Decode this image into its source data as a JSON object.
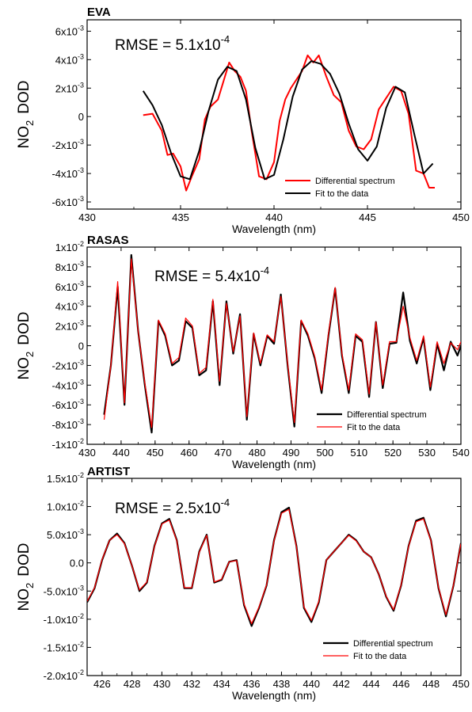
{
  "chart_data": [
    {
      "type": "line",
      "title": "EVA",
      "annotation": "RMSE = 5.1x10",
      "annotation_exp": "-4",
      "xlabel": "Wavelength (nm)",
      "ylabel": {
        "pre": "NO",
        "sub": "2",
        "post": "DOD"
      },
      "xlim": [
        430,
        450
      ],
      "ylim": [
        -0.0065,
        0.0068
      ],
      "xticks": [
        430,
        435,
        440,
        445,
        450
      ],
      "yticks": [
        {
          "v": 0.006,
          "m": "6x10",
          "e": "-3"
        },
        {
          "v": 0.004,
          "m": "4x10",
          "e": "-3"
        },
        {
          "v": 0.002,
          "m": "2x10",
          "e": "-3"
        },
        {
          "v": 0,
          "m": "0",
          "e": ""
        },
        {
          "v": -0.002,
          "m": "-2x10",
          "e": "-3"
        },
        {
          "v": -0.004,
          "m": "-4x10",
          "e": "-3"
        },
        {
          "v": -0.006,
          "m": "-6x10",
          "e": "-3"
        }
      ],
      "series": [
        {
          "name": "Differential spectrum",
          "color": "#ff0000",
          "width": 2,
          "x": [
            433,
            433.5,
            434,
            434.3,
            434.6,
            435,
            435.3,
            435.6,
            436,
            436.3,
            436.6,
            437,
            437.3,
            437.6,
            437.9,
            438.2,
            438.5,
            438.8,
            439.2,
            439.6,
            440,
            440.3,
            440.6,
            440.9,
            441.2,
            441.5,
            441.8,
            442.1,
            442.4,
            442.8,
            443.2,
            443.6,
            444,
            444.4,
            444.8,
            445.2,
            445.6,
            446,
            446.4,
            446.8,
            447.2,
            447.6,
            448,
            448.3,
            448.6
          ],
          "y": [
            0.0001,
            0.0002,
            -0.001,
            -0.0027,
            -0.0026,
            -0.0035,
            -0.0052,
            -0.0042,
            -0.003,
            -0.0002,
            0.0007,
            0.0012,
            0.0025,
            0.0038,
            0.0032,
            0.0028,
            0.0018,
            -0.001,
            -0.0042,
            -0.0044,
            -0.0032,
            -0.0003,
            0.0012,
            0.002,
            0.0026,
            0.0032,
            0.0043,
            0.0038,
            0.0043,
            0.0028,
            0.0015,
            0.001,
            -0.001,
            -0.0021,
            -0.0023,
            -0.0016,
            0.0005,
            0.0013,
            0.0021,
            0.0018,
            0.0002,
            -0.0038,
            -0.004,
            -0.005,
            -0.005
          ]
        },
        {
          "name": "Fit to the data",
          "color": "#000000",
          "width": 2,
          "x": [
            433,
            433.5,
            434,
            434.5,
            435,
            435.5,
            436,
            436.5,
            437,
            437.5,
            438,
            438.5,
            439,
            439.5,
            440,
            440.5,
            441,
            441.5,
            442,
            442.5,
            443,
            443.5,
            444,
            444.5,
            445,
            445.5,
            446,
            446.5,
            447,
            447.5,
            448,
            448.5
          ],
          "y": [
            0.0018,
            0.0008,
            -0.0006,
            -0.0026,
            -0.0042,
            -0.0044,
            -0.0024,
            0.0004,
            0.0026,
            0.0035,
            0.0032,
            0.0012,
            -0.0022,
            -0.0044,
            -0.0041,
            -0.0016,
            0.0014,
            0.0033,
            0.0039,
            0.0037,
            0.003,
            0.0016,
            -0.0005,
            -0.0023,
            -0.0031,
            -0.0021,
            0.0006,
            0.0021,
            0.0017,
            -0.0012,
            -0.004,
            -0.0033
          ]
        }
      ]
    },
    {
      "type": "line",
      "title": "RASAS",
      "annotation": "RMSE = 5.4x10",
      "annotation_exp": "-4",
      "xlabel": "Wavelength (nm)",
      "ylabel": {
        "pre": "NO",
        "sub": "2",
        "post": "DOD"
      },
      "xlim": [
        430,
        540
      ],
      "ylim": [
        -0.01,
        0.01
      ],
      "xticks": [
        430,
        440,
        450,
        460,
        470,
        480,
        490,
        500,
        510,
        520,
        530,
        540
      ],
      "yticks": [
        {
          "v": 0.01,
          "m": "1x10",
          "e": "-2"
        },
        {
          "v": 0.008,
          "m": "8x10",
          "e": "-3"
        },
        {
          "v": 0.006,
          "m": "6x10",
          "e": "-3"
        },
        {
          "v": 0.004,
          "m": "4x10",
          "e": "-3"
        },
        {
          "v": 0.002,
          "m": "2x10",
          "e": "-3"
        },
        {
          "v": 0,
          "m": "0",
          "e": ""
        },
        {
          "v": -0.002,
          "m": "-2x10",
          "e": "-3"
        },
        {
          "v": -0.004,
          "m": "-4x10",
          "e": "-3"
        },
        {
          "v": -0.006,
          "m": "-6x10",
          "e": "-3"
        },
        {
          "v": -0.008,
          "m": "-8x10",
          "e": "-3"
        },
        {
          "v": -0.01,
          "m": "-1x10",
          "e": "-2"
        }
      ],
      "series": [
        {
          "name": "Differential spectrum",
          "color": "#000000",
          "width": 2.2,
          "x": [
            435,
            437,
            439,
            441,
            443,
            445,
            447,
            449,
            451,
            453,
            455,
            457,
            459,
            461,
            463,
            465,
            467,
            469,
            471,
            473,
            475,
            477,
            479,
            481,
            483,
            485,
            487,
            489,
            491,
            493,
            495,
            497,
            499,
            501,
            503,
            505,
            507,
            509,
            511,
            513,
            515,
            517,
            519,
            521,
            523,
            525,
            527,
            529,
            531,
            533,
            535,
            537,
            539,
            540
          ],
          "y": [
            -0.007,
            -0.002,
            0.006,
            -0.006,
            0.0092,
            0.0015,
            -0.004,
            -0.0088,
            0.0025,
            0.001,
            -0.002,
            -0.0015,
            0.0025,
            0.0018,
            -0.003,
            -0.0025,
            0.0045,
            -0.004,
            0.0045,
            -0.0008,
            0.0032,
            -0.0075,
            0.0012,
            -0.002,
            0.001,
            0.0002,
            0.0052,
            -0.002,
            -0.0082,
            0.0025,
            0.001,
            -0.0013,
            -0.0048,
            0.001,
            0.0058,
            -0.001,
            -0.0048,
            0.001,
            0.0004,
            -0.0052,
            0.0024,
            -0.0043,
            0.0002,
            0.0003,
            0.0054,
            0.0005,
            -0.0018,
            0.0008,
            -0.0045,
            0.0002,
            -0.0025,
            0.0004,
            -0.001,
            0.0
          ]
        },
        {
          "name": "Fit to the data",
          "color": "#ff0000",
          "width": 1.2,
          "x": [
            435,
            437,
            439,
            441,
            443,
            445,
            447,
            449,
            451,
            453,
            455,
            457,
            459,
            461,
            463,
            465,
            467,
            469,
            471,
            473,
            475,
            477,
            479,
            481,
            483,
            485,
            487,
            489,
            491,
            493,
            495,
            497,
            499,
            501,
            503,
            505,
            507,
            509,
            511,
            513,
            515,
            517,
            519,
            521,
            523,
            525,
            527,
            529,
            531,
            533,
            535,
            537,
            539,
            540
          ],
          "y": [
            -0.0075,
            -0.002,
            0.0065,
            -0.0058,
            0.0088,
            0.0015,
            -0.0038,
            -0.0083,
            0.0026,
            0.0012,
            -0.0018,
            -0.0012,
            0.0028,
            0.002,
            -0.0028,
            -0.0022,
            0.0047,
            -0.0036,
            0.0043,
            -0.0006,
            0.003,
            -0.0072,
            0.0013,
            -0.0018,
            0.0011,
            0.0004,
            0.005,
            -0.0018,
            -0.0078,
            0.0026,
            0.0012,
            -0.0011,
            -0.0045,
            0.0012,
            0.0059,
            -0.0008,
            -0.0045,
            0.0012,
            0.0006,
            -0.0049,
            0.0024,
            -0.004,
            0.0004,
            0.0004,
            0.004,
            0.0008,
            -0.0015,
            0.001,
            -0.0042,
            0.0004,
            -0.0018,
            0.0003,
            -0.0004,
            0.0004
          ]
        }
      ]
    },
    {
      "type": "line",
      "title": "ARTIST",
      "annotation": "RMSE = 2.5x10",
      "annotation_exp": "-4",
      "xlabel": "Wavelength (nm)",
      "ylabel": {
        "pre": "NO",
        "sub": "2",
        "post": "DOD"
      },
      "xlim": [
        425,
        450
      ],
      "ylim": [
        -0.02,
        0.015
      ],
      "xticks": [
        426,
        428,
        430,
        432,
        434,
        436,
        438,
        440,
        442,
        444,
        446,
        448,
        450
      ],
      "yticks": [
        {
          "v": 0.015,
          "m": "1.5x10",
          "e": "-2"
        },
        {
          "v": 0.01,
          "m": "1.0x10",
          "e": "-2"
        },
        {
          "v": 0.005,
          "m": "5.0x10",
          "e": "-3"
        },
        {
          "v": 0,
          "m": "0.0",
          "e": ""
        },
        {
          "v": -0.005,
          "m": "-5.0x10",
          "e": "-3"
        },
        {
          "v": -0.01,
          "m": "-1.0x10",
          "e": "-2"
        },
        {
          "v": -0.015,
          "m": "-1.5x10",
          "e": "-2"
        },
        {
          "v": -0.02,
          "m": "-2.0x10",
          "e": "-2"
        }
      ],
      "series": [
        {
          "name": "Differential spectrum",
          "color": "#000000",
          "width": 2.2,
          "x": [
            425,
            425.5,
            426,
            426.5,
            427,
            427.5,
            428,
            428.5,
            429,
            429.5,
            430,
            430.5,
            431,
            431.5,
            432,
            432.5,
            433,
            433.5,
            434,
            434.5,
            435,
            435.5,
            436,
            436.5,
            437,
            437.5,
            438,
            438.5,
            439,
            439.5,
            440,
            440.5,
            441,
            441.5,
            442,
            442.5,
            443,
            443.5,
            444,
            444.5,
            445,
            445.5,
            446,
            446.5,
            447,
            447.5,
            448,
            448.5,
            449,
            449.5,
            450
          ],
          "y": [
            -0.007,
            -0.0045,
            0.0005,
            0.004,
            0.0052,
            0.0035,
            -0.0005,
            -0.005,
            -0.0035,
            0.003,
            0.007,
            0.0078,
            0.004,
            -0.0045,
            -0.0045,
            0.002,
            0.005,
            -0.0035,
            -0.003,
            0.0002,
            0.0005,
            -0.0075,
            -0.0112,
            -0.008,
            -0.004,
            0.004,
            0.009,
            0.0098,
            0.003,
            -0.008,
            -0.0105,
            -0.007,
            0.0005,
            0.002,
            0.0035,
            0.005,
            0.004,
            0.002,
            0.001,
            -0.002,
            -0.006,
            -0.0085,
            -0.004,
            0.003,
            0.0075,
            0.008,
            0.004,
            -0.0045,
            -0.0095,
            -0.004,
            0.0035
          ]
        },
        {
          "name": "Fit to the data",
          "color": "#ff0000",
          "width": 1.2,
          "x": [
            425,
            425.5,
            426,
            426.5,
            427,
            427.5,
            428,
            428.5,
            429,
            429.5,
            430,
            430.5,
            431,
            431.5,
            432,
            432.5,
            433,
            433.5,
            434,
            434.5,
            435,
            435.5,
            436,
            436.5,
            437,
            437.5,
            438,
            438.5,
            439,
            439.5,
            440,
            440.5,
            441,
            441.5,
            442,
            442.5,
            443,
            443.5,
            444,
            444.5,
            445,
            445.5,
            446,
            446.5,
            447,
            447.5,
            448,
            448.5,
            449,
            449.5,
            450
          ],
          "y": [
            -0.0068,
            -0.0044,
            0.0006,
            0.004,
            0.005,
            0.0034,
            -0.0005,
            -0.0048,
            -0.0034,
            0.0029,
            0.0069,
            0.0076,
            0.0039,
            -0.0044,
            -0.0044,
            0.0019,
            0.0049,
            -0.0034,
            -0.0029,
            0.0002,
            0.0004,
            -0.0073,
            -0.0108,
            -0.0078,
            -0.0039,
            0.0039,
            0.0088,
            0.0095,
            0.0029,
            -0.0078,
            -0.0102,
            -0.0068,
            0.0005,
            0.002,
            0.0035,
            0.0049,
            0.0039,
            0.002,
            0.001,
            -0.002,
            -0.0059,
            -0.0083,
            -0.0039,
            0.0029,
            0.0073,
            0.0078,
            0.0039,
            -0.0044,
            -0.0092,
            -0.0039,
            0.0034
          ]
        }
      ]
    }
  ]
}
